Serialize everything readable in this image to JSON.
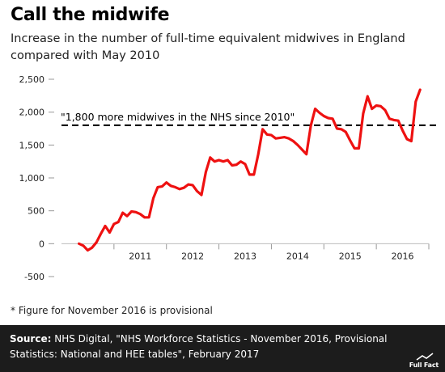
{
  "title": "Call the midwife",
  "subtitle": "Increase in the number of full-time equivalent midwives in England compared with May 2010",
  "footnote": "* Figure for November 2016 is provisional",
  "source": {
    "label": "Source:",
    "text": " NHS Digital, \"NHS Workforce Statistics - November 2016, Provisional Statistics: National and HEE tables\", February 2017"
  },
  "logo_text": "Full Fact",
  "colors": {
    "line": "#ee1111",
    "reference": "#000000",
    "footer_bg": "#1c1c1c"
  },
  "chart_data": {
    "type": "line",
    "title": "Call the midwife",
    "x_tick_labels": [
      "2011",
      "2012",
      "2013",
      "2014",
      "2015",
      "2016"
    ],
    "y_tick_labels": [
      "2,500",
      "2,000",
      "1,500",
      "1,000",
      "500",
      "0",
      "-500"
    ],
    "y_ticks": [
      2500,
      2000,
      1500,
      1000,
      500,
      0,
      -500
    ],
    "ylim": [
      -500,
      2500
    ],
    "xlim": [
      "2010-01",
      "2016-12"
    ],
    "grid": false,
    "series": [
      {
        "x": [
          "2010-05",
          "2010-06",
          "2010-07",
          "2010-08",
          "2010-09",
          "2010-10",
          "2010-11",
          "2010-12",
          "2011-01",
          "2011-02",
          "2011-03",
          "2011-04",
          "2011-05",
          "2011-06",
          "2011-07",
          "2011-08",
          "2011-09",
          "2011-10",
          "2011-11",
          "2011-12",
          "2012-01",
          "2012-02",
          "2012-03",
          "2012-04",
          "2012-05",
          "2012-06",
          "2012-07",
          "2012-08",
          "2012-09",
          "2012-10",
          "2012-11",
          "2012-12",
          "2013-01",
          "2013-02",
          "2013-03",
          "2013-04",
          "2013-05",
          "2013-06",
          "2013-07",
          "2013-08",
          "2013-09",
          "2013-10",
          "2013-11",
          "2013-12",
          "2014-01",
          "2014-02",
          "2014-03",
          "2014-04",
          "2014-05",
          "2014-06",
          "2014-07",
          "2014-08",
          "2014-09",
          "2014-10",
          "2014-11",
          "2014-12",
          "2015-01",
          "2015-02",
          "2015-03",
          "2015-04",
          "2015-05",
          "2015-06",
          "2015-07",
          "2015-08",
          "2015-09",
          "2015-10",
          "2015-11",
          "2015-12",
          "2016-01",
          "2016-02",
          "2016-03",
          "2016-04",
          "2016-05",
          "2016-06",
          "2016-07",
          "2016-08",
          "2016-09",
          "2016-10",
          "2016-11"
        ],
        "y": [
          0,
          -30,
          -100,
          -60,
          20,
          150,
          270,
          170,
          300,
          330,
          470,
          420,
          490,
          480,
          450,
          400,
          400,
          690,
          860,
          870,
          930,
          880,
          860,
          830,
          850,
          900,
          890,
          800,
          740,
          1090,
          1310,
          1250,
          1270,
          1250,
          1270,
          1190,
          1200,
          1250,
          1210,
          1050,
          1050,
          1360,
          1740,
          1660,
          1650,
          1600,
          1610,
          1620,
          1600,
          1560,
          1500,
          1430,
          1360,
          1790,
          2050,
          1990,
          1940,
          1910,
          1900,
          1750,
          1740,
          1700,
          1570,
          1450,
          1450,
          1980,
          2240,
          2050,
          2100,
          2090,
          2030,
          1900,
          1880,
          1870,
          1720,
          1590,
          1560,
          2160,
          2340
        ]
      }
    ],
    "annotations": [
      {
        "text": "\"1,800 more midwives in the NHS since 2010\"",
        "y": 1800,
        "style": "dashed"
      }
    ]
  }
}
